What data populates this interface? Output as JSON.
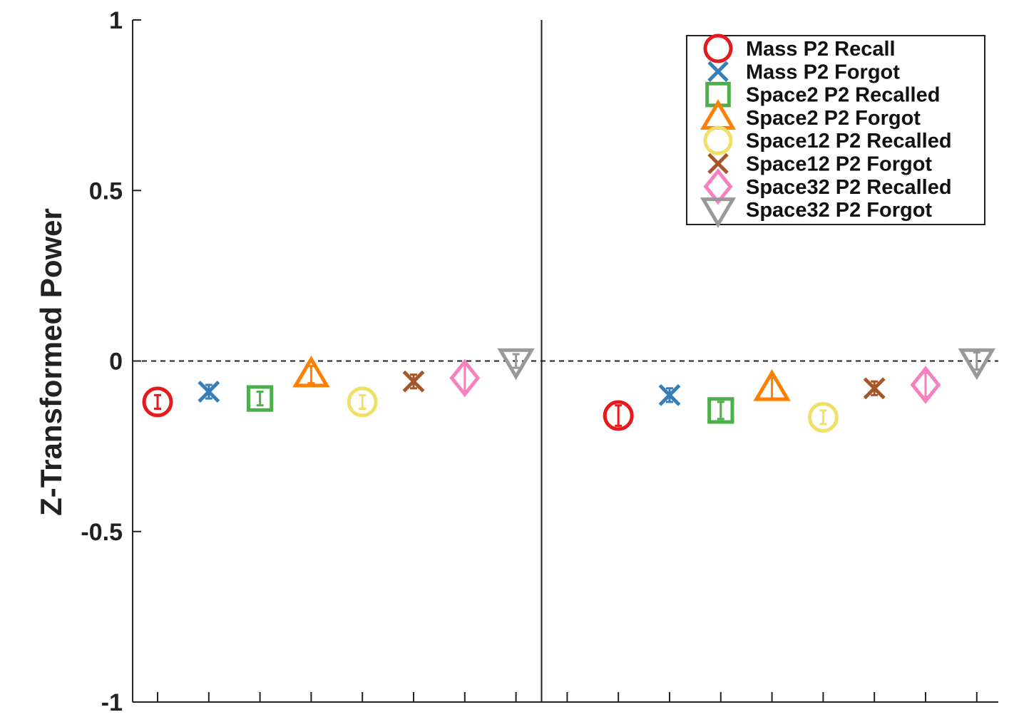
{
  "chart_data": {
    "type": "scatter",
    "title": "",
    "xlabel": "",
    "ylabel": "Z-Transformed Power",
    "ylim": [
      -1,
      1
    ],
    "yticks": [
      {
        "value": 1,
        "label": "1"
      },
      {
        "value": 0.5,
        "label": "0.5"
      },
      {
        "value": 0,
        "label": "0"
      },
      {
        "value": -0.5,
        "label": "-0.5"
      },
      {
        "value": -1,
        "label": "-1"
      }
    ],
    "x_positions": 17,
    "panel_divider_after": 8,
    "reference_line": 0,
    "grid": false,
    "legend_position": "top-right",
    "series": [
      {
        "name": "Mass P2 Recall",
        "marker": "circle",
        "color": "#e41a1c",
        "points": [
          {
            "x": 1,
            "y": -0.12,
            "err": 0.02
          },
          {
            "x": 10,
            "y": -0.16,
            "err": 0.03
          }
        ]
      },
      {
        "name": "Mass P2 Forgot",
        "marker": "x",
        "color": "#377eb8",
        "points": [
          {
            "x": 2,
            "y": -0.09,
            "err": 0.02
          },
          {
            "x": 11,
            "y": -0.1,
            "err": 0.02
          }
        ]
      },
      {
        "name": "Space2 P2 Recalled",
        "marker": "square",
        "color": "#4daf4a",
        "points": [
          {
            "x": 3,
            "y": -0.11,
            "err": 0.02
          },
          {
            "x": 12,
            "y": -0.145,
            "err": 0.025
          }
        ]
      },
      {
        "name": "Space2 P2 Forgot",
        "marker": "triangle",
        "color": "#ff7f00",
        "points": [
          {
            "x": 4,
            "y": -0.04,
            "err": 0.025
          },
          {
            "x": 13,
            "y": -0.08,
            "err": 0.03
          }
        ]
      },
      {
        "name": "Space12 P2 Recalled",
        "marker": "circle",
        "color": "#f0e068",
        "points": [
          {
            "x": 5,
            "y": -0.12,
            "err": 0.02
          },
          {
            "x": 14,
            "y": -0.165,
            "err": 0.02
          }
        ]
      },
      {
        "name": "Space12 P2 Forgot",
        "marker": "x",
        "color": "#a65628",
        "points": [
          {
            "x": 6,
            "y": -0.06,
            "err": 0.02
          },
          {
            "x": 15,
            "y": -0.08,
            "err": 0.02
          }
        ]
      },
      {
        "name": "Space32 P2 Recalled",
        "marker": "diamond",
        "color": "#f781bf",
        "points": [
          {
            "x": 7,
            "y": -0.05,
            "err": 0.04
          },
          {
            "x": 16,
            "y": -0.07,
            "err": 0.035
          }
        ]
      },
      {
        "name": "Space32 P2 Forgot",
        "marker": "triangle-down",
        "color": "#999999",
        "points": [
          {
            "x": 8,
            "y": 0.0,
            "err": 0.02
          },
          {
            "x": 17,
            "y": 0.0,
            "err": 0.025
          }
        ]
      }
    ]
  }
}
